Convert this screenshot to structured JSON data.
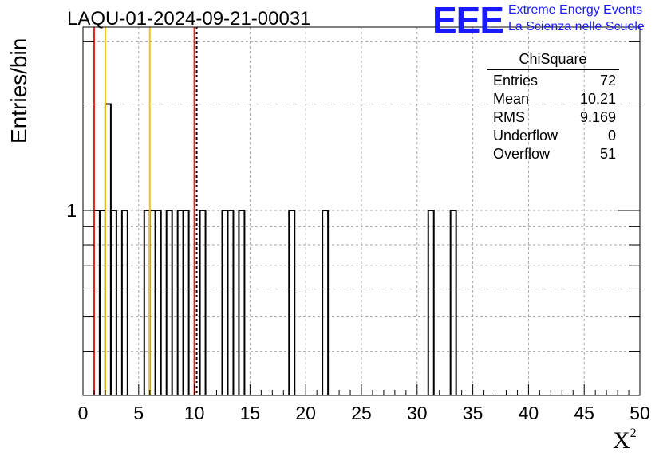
{
  "header": {
    "run_title": "LAQU-01-2024-09-21-00031",
    "logo_text": "EEE",
    "logo_line1": "Extreme Energy Events",
    "logo_line2": "La Scienza nelle Scuole"
  },
  "stats_box": {
    "title": "ChiSquare",
    "rows": [
      {
        "label": "Entries",
        "value": "72"
      },
      {
        "label": "Mean",
        "value": "10.21"
      },
      {
        "label": "RMS",
        "value": "9.169"
      },
      {
        "label": "Underflow",
        "value": "0"
      },
      {
        "label": "Overflow",
        "value": "51"
      }
    ]
  },
  "chart_data": {
    "type": "histogram",
    "title": "LAQU-01-2024-09-21-00031",
    "xlabel": "X",
    "xlabel_superscript": "2",
    "ylabel": "Entries/bin",
    "xlim": [
      0,
      50
    ],
    "y_scale": "log",
    "ylim": [
      0.3,
      3.3
    ],
    "bin_width": 0.5,
    "xticks": [
      0,
      5,
      10,
      15,
      20,
      25,
      30,
      35,
      40,
      45,
      50
    ],
    "ytick_labels": [
      {
        "value": 1,
        "label": "1"
      }
    ],
    "grid": true,
    "bins": [
      {
        "x": 1.0,
        "count": 1
      },
      {
        "x": 1.5,
        "count": 1
      },
      {
        "x": 2.0,
        "count": 2
      },
      {
        "x": 2.5,
        "count": 1
      },
      {
        "x": 3.5,
        "count": 1
      },
      {
        "x": 5.5,
        "count": 1
      },
      {
        "x": 6.0,
        "count": 1
      },
      {
        "x": 6.5,
        "count": 1
      },
      {
        "x": 7.5,
        "count": 1
      },
      {
        "x": 8.5,
        "count": 1
      },
      {
        "x": 9.0,
        "count": 1
      },
      {
        "x": 10.5,
        "count": 1
      },
      {
        "x": 12.5,
        "count": 1
      },
      {
        "x": 13.0,
        "count": 1
      },
      {
        "x": 14.0,
        "count": 1
      },
      {
        "x": 18.5,
        "count": 1
      },
      {
        "x": 21.5,
        "count": 1
      },
      {
        "x": 31.0,
        "count": 1
      },
      {
        "x": 33.0,
        "count": 1
      }
    ],
    "vertical_lines": [
      {
        "x": 1.0,
        "color": "#e8211d",
        "style": "solid"
      },
      {
        "x": 2.0,
        "color": "#f2c21b",
        "style": "solid"
      },
      {
        "x": 6.0,
        "color": "#f2c21b",
        "style": "solid"
      },
      {
        "x": 10.0,
        "color": "#e8211d",
        "style": "solid"
      },
      {
        "x": 10.21,
        "color": "#000000",
        "style": "dashed"
      }
    ]
  }
}
